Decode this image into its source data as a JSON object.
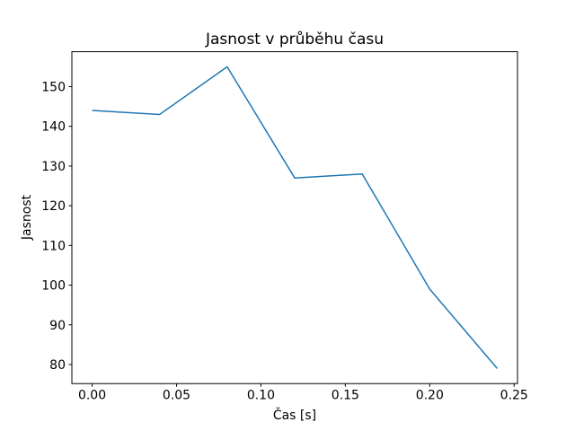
{
  "chart_data": {
    "type": "line",
    "title": "Jasnost v průběhu času",
    "xlabel": "Čas [s]",
    "ylabel": "Jasnost",
    "x": [
      0.0,
      0.04,
      0.08,
      0.12,
      0.16,
      0.2,
      0.24
    ],
    "y": [
      144,
      143,
      155,
      127,
      128,
      99,
      79
    ],
    "xlim": [
      -0.012,
      0.252
    ],
    "ylim": [
      75.2,
      158.8
    ],
    "xticks": [
      {
        "value": 0.0,
        "label": "0.00"
      },
      {
        "value": 0.05,
        "label": "0.05"
      },
      {
        "value": 0.1,
        "label": "0.10"
      },
      {
        "value": 0.15,
        "label": "0.15"
      },
      {
        "value": 0.2,
        "label": "0.20"
      },
      {
        "value": 0.25,
        "label": "0.25"
      }
    ],
    "yticks": [
      {
        "value": 80,
        "label": "80"
      },
      {
        "value": 90,
        "label": "90"
      },
      {
        "value": 100,
        "label": "100"
      },
      {
        "value": 110,
        "label": "110"
      },
      {
        "value": 120,
        "label": "120"
      },
      {
        "value": 130,
        "label": "130"
      },
      {
        "value": 140,
        "label": "140"
      },
      {
        "value": 150,
        "label": "150"
      }
    ],
    "grid": false,
    "line_color": "#1f77b4",
    "line_width": 1.5,
    "frame_color": "#000000",
    "tick_color": "#000000",
    "background_color": "#ffffff"
  }
}
